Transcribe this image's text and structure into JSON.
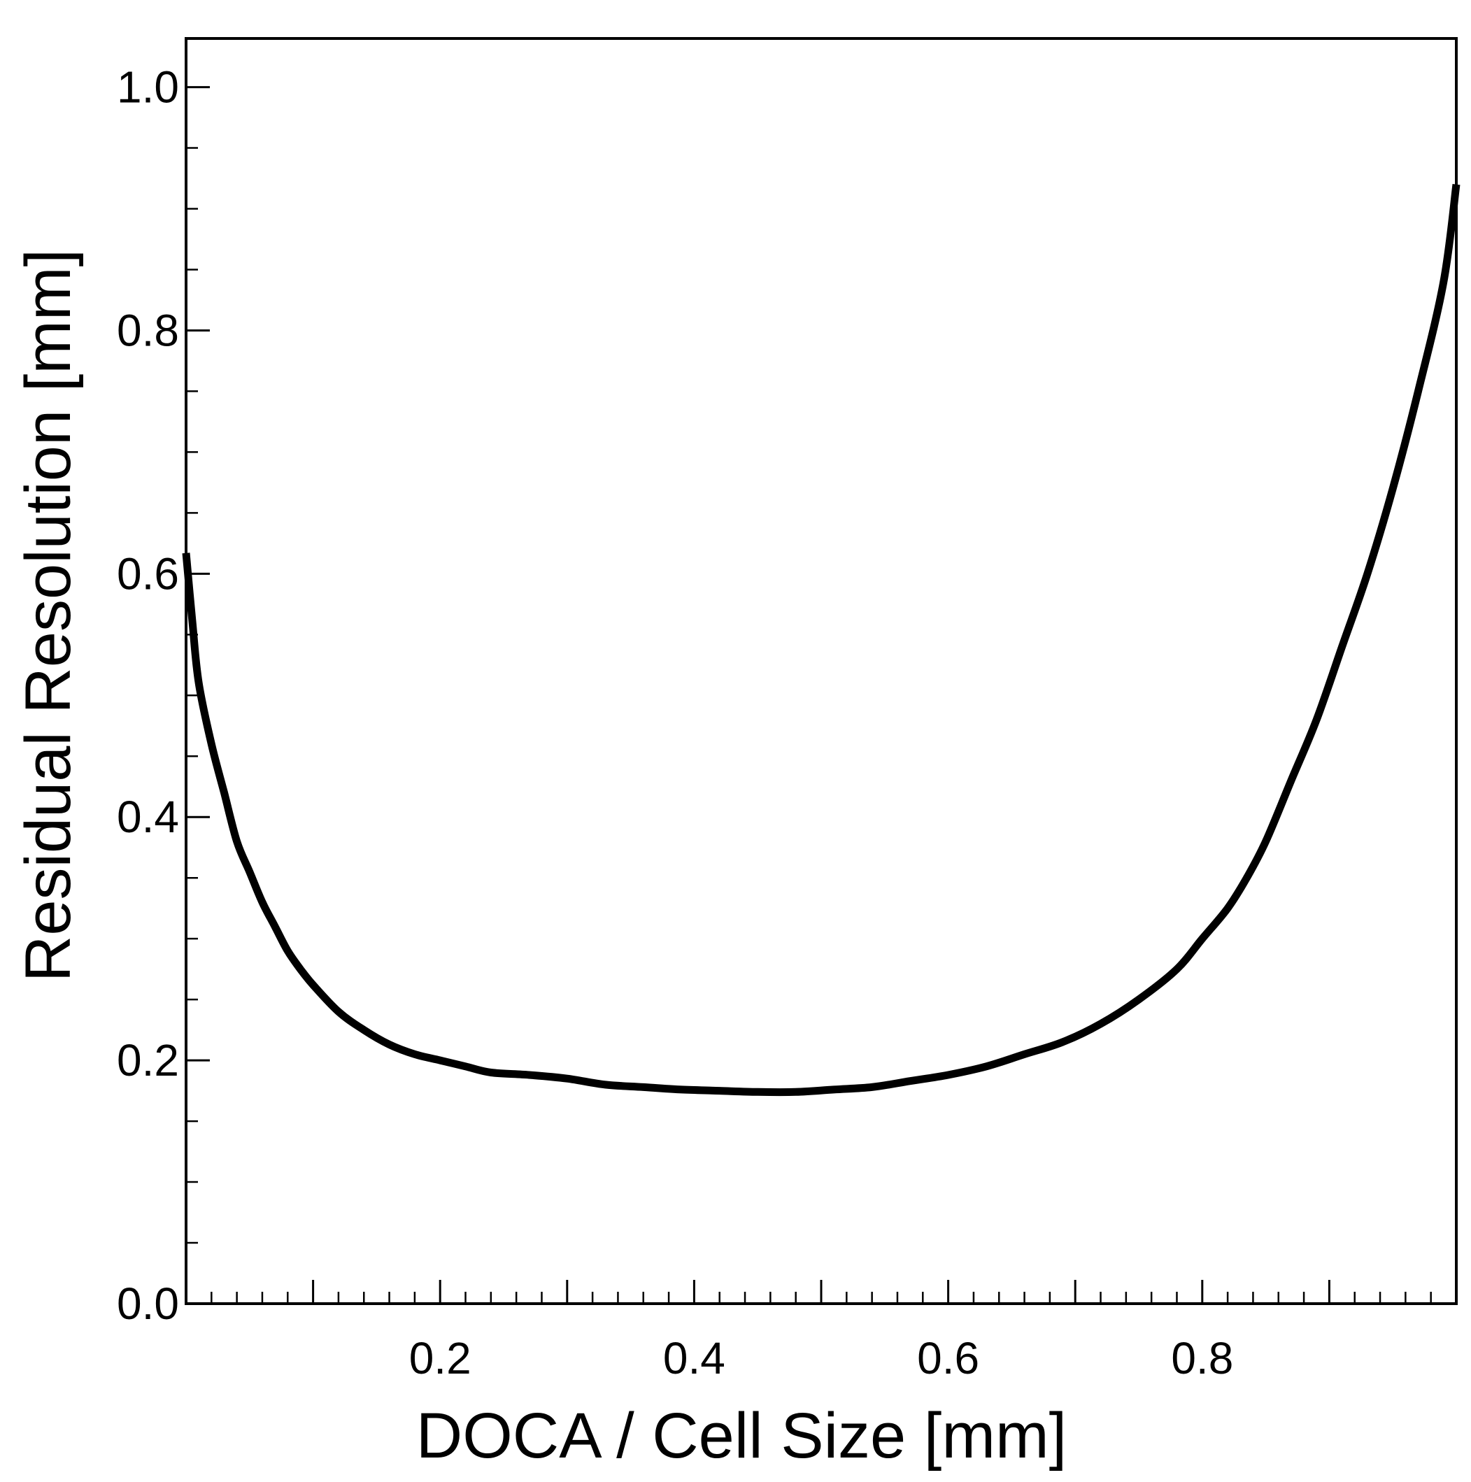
{
  "chart_data": {
    "type": "line",
    "xlabel": "DOCA / Cell Size   [mm]",
    "ylabel": "Residual Resolution [mm]",
    "xlim": [
      0.0,
      1.0
    ],
    "ylim": [
      0.0,
      1.04
    ],
    "x_ticks": [
      {
        "value": 0.2,
        "label": "0.2"
      },
      {
        "value": 0.4,
        "label": "0.4"
      },
      {
        "value": 0.6,
        "label": "0.6"
      },
      {
        "value": 0.8,
        "label": "0.8"
      }
    ],
    "y_ticks": [
      {
        "value": 0.0,
        "label": "0.0"
      },
      {
        "value": 0.2,
        "label": "0.2"
      },
      {
        "value": 0.4,
        "label": "0.4"
      },
      {
        "value": 0.6,
        "label": "0.6"
      },
      {
        "value": 0.8,
        "label": "0.8"
      },
      {
        "value": 1.0,
        "label": "1.0"
      }
    ],
    "x_minor_step": 0.02,
    "x_major_step": 0.1,
    "y_minor_step": 0.05,
    "grid": false,
    "legend": "none",
    "series": [
      {
        "color": "#000000",
        "x": [
          0.0,
          0.005,
          0.01,
          0.02,
          0.03,
          0.04,
          0.05,
          0.06,
          0.07,
          0.08,
          0.09,
          0.1,
          0.12,
          0.14,
          0.16,
          0.18,
          0.2,
          0.22,
          0.24,
          0.27,
          0.3,
          0.33,
          0.36,
          0.39,
          0.42,
          0.45,
          0.48,
          0.51,
          0.54,
          0.57,
          0.6,
          0.63,
          0.66,
          0.69,
          0.72,
          0.75,
          0.78,
          0.8,
          0.82,
          0.835,
          0.85,
          0.87,
          0.89,
          0.91,
          0.93,
          0.95,
          0.97,
          0.99,
          1.0
        ],
        "y": [
          0.617,
          0.56,
          0.51,
          0.46,
          0.42,
          0.38,
          0.355,
          0.33,
          0.31,
          0.29,
          0.275,
          0.262,
          0.24,
          0.225,
          0.213,
          0.205,
          0.2,
          0.195,
          0.19,
          0.188,
          0.185,
          0.18,
          0.178,
          0.176,
          0.175,
          0.174,
          0.174,
          0.176,
          0.178,
          0.183,
          0.188,
          0.195,
          0.205,
          0.215,
          0.23,
          0.25,
          0.275,
          0.3,
          0.325,
          0.35,
          0.38,
          0.43,
          0.48,
          0.54,
          0.6,
          0.67,
          0.75,
          0.84,
          0.92
        ]
      }
    ]
  }
}
